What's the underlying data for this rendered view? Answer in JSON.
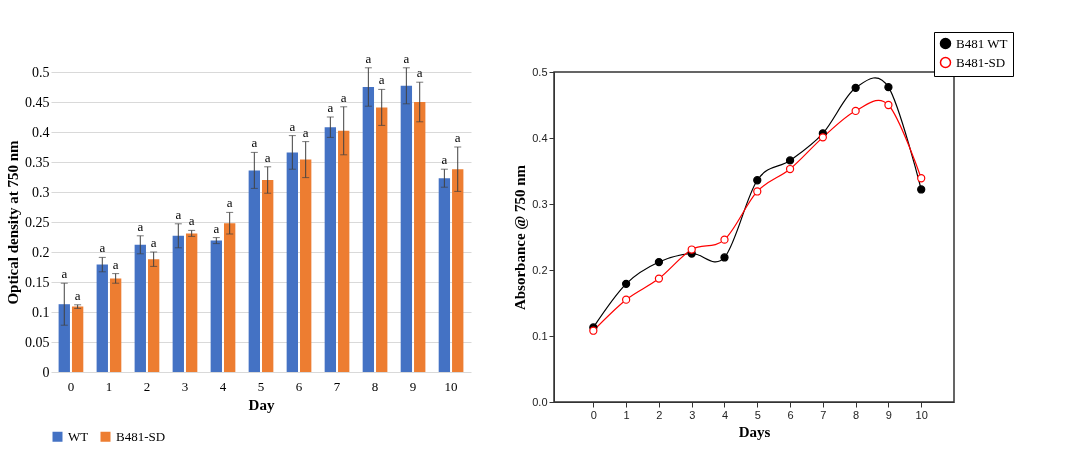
{
  "chart_data": [
    {
      "type": "bar",
      "categories": [
        "0",
        "1",
        "2",
        "3",
        "4",
        "5",
        "6",
        "7",
        "8",
        "9",
        "10"
      ],
      "xlabel": "Day",
      "ylabel": "Optical density at 750 nm",
      "ylim": [
        0,
        0.5
      ],
      "yticks": [
        0,
        0.05,
        0.1,
        0.15,
        0.2,
        0.25,
        0.3,
        0.35,
        0.4,
        0.45,
        0.5
      ],
      "grid": "y",
      "legend": "bottom",
      "series": [
        {
          "name": "WT",
          "color": "#4472c4",
          "values": [
            0.113,
            0.179,
            0.212,
            0.227,
            0.219,
            0.336,
            0.366,
            0.408,
            0.475,
            0.477,
            0.323
          ],
          "errors": [
            0.035,
            0.012,
            0.015,
            0.02,
            0.005,
            0.03,
            0.028,
            0.017,
            0.032,
            0.03,
            0.015
          ],
          "value_labels": [
            "a",
            "a",
            "a",
            "a",
            "a",
            "a",
            "a",
            "a",
            "a",
            "a",
            "a"
          ]
        },
        {
          "name": "B481-SD",
          "color": "#ed7d31",
          "values": [
            0.109,
            0.156,
            0.188,
            0.231,
            0.248,
            0.32,
            0.354,
            0.402,
            0.441,
            0.45,
            0.338
          ],
          "errors": [
            0.003,
            0.008,
            0.012,
            0.005,
            0.018,
            0.022,
            0.03,
            0.04,
            0.03,
            0.033,
            0.037
          ],
          "value_labels": [
            "a",
            "a",
            "a",
            "a",
            "a",
            "a",
            "a",
            "a",
            "a",
            "a",
            "a"
          ]
        }
      ]
    },
    {
      "type": "line",
      "x": [
        0,
        1,
        2,
        3,
        4,
        5,
        6,
        7,
        8,
        9,
        10
      ],
      "xlabel": "Days",
      "ylabel": "Absorbance @ 750 nm",
      "xlim": [
        -1.2,
        11
      ],
      "xticks": [
        0,
        1,
        2,
        3,
        4,
        5,
        6,
        7,
        8,
        9,
        10
      ],
      "ylim": [
        0,
        0.5
      ],
      "yticks": [
        {
          "value": 0,
          "label": "0.0"
        },
        0.1,
        0.2,
        0.3,
        0.4,
        0.5
      ],
      "legend": "top right",
      "marker": "circle",
      "series": [
        {
          "name": "B481 WT",
          "color": "#000000",
          "values": [
            0.113,
            0.179,
            0.212,
            0.225,
            0.219,
            0.336,
            0.366,
            0.407,
            0.476,
            0.477,
            0.322
          ]
        },
        {
          "name": "B481-SD",
          "color": "#ff0000",
          "values": [
            0.108,
            0.155,
            0.187,
            0.231,
            0.246,
            0.319,
            0.353,
            0.401,
            0.441,
            0.45,
            0.339
          ]
        }
      ]
    }
  ]
}
